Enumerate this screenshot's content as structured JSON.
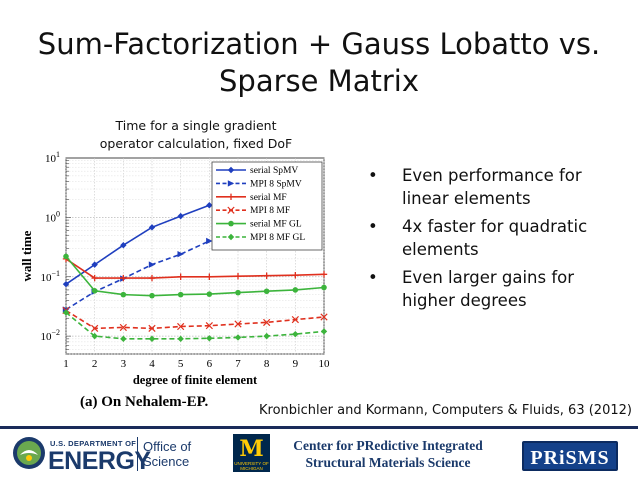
{
  "slide": {
    "title_line1": "Sum-Factorization + Gauss Lobatto vs.",
    "title_line2": "Sparse Matrix",
    "caption_line1": "Time for a single gradient",
    "caption_line2": "operator calculation, fixed DoF",
    "bullets": [
      {
        "line1": "Even performance for",
        "line2": "linear elements"
      },
      {
        "line1": "4x faster for quadratic",
        "line2": "elements"
      },
      {
        "line1": "Even larger gains for",
        "line2": "higher degrees"
      }
    ],
    "bullet_glyph": "•",
    "reference": "Kronbichler and Kormann, Computers & Fluids, 63 (2012)"
  },
  "footer": {
    "doe_top": "U.S. DEPARTMENT OF",
    "doe_main": "ENERGY",
    "office_line1": "Office of",
    "office_line2": "Science",
    "um_letter": "M",
    "um_line1": "UNIVERSITY OF",
    "um_line2": "MICHIGAN",
    "center_line1": "Center for  PRedictive Integrated",
    "center_line2": "Structural Materials Science",
    "prisms": "PRiSMS",
    "colors": {
      "navy": "#1b3a6b",
      "doe_green": "#6aa84f",
      "um_blue": "#00274c",
      "um_maize": "#ffcb05",
      "prisms_blue": "#14418a"
    }
  },
  "chart_data": {
    "type": "line",
    "xlabel": "degree of finite element",
    "ylabel": "wall time",
    "subtitle": "(a)  On Nehalem-EP.",
    "x_scale": "linear",
    "y_scale": "log",
    "xlim": [
      1,
      10
    ],
    "ylim": [
      0.005,
      10
    ],
    "x_ticks": [
      "1",
      "2",
      "3",
      "4",
      "5",
      "6",
      "7",
      "8",
      "9",
      "10"
    ],
    "y_ticks": [
      {
        "value": 0.01,
        "base": "10",
        "exp": "−2"
      },
      {
        "value": 0.1,
        "base": "10",
        "exp": "−1"
      },
      {
        "value": 1,
        "base": "10",
        "exp": "0"
      },
      {
        "value": 10,
        "base": "10",
        "exp": "1"
      }
    ],
    "grid": true,
    "legend_position": "top-right",
    "series": [
      {
        "name": "serial SpMV",
        "color": "#1f3fbf",
        "dash": "solid",
        "marker": "diamond",
        "x": [
          1,
          2,
          3,
          4,
          5,
          6
        ],
        "y": [
          0.075,
          0.16,
          0.34,
          0.68,
          1.05,
          1.6
        ]
      },
      {
        "name": "MPI 8 SpMV",
        "color": "#1f3fbf",
        "dash": "dashed",
        "marker": "triangle",
        "x": [
          1,
          2,
          3,
          4,
          5,
          6
        ],
        "y": [
          0.028,
          0.056,
          0.093,
          0.16,
          0.24,
          0.4
        ]
      },
      {
        "name": "serial MF",
        "color": "#e0301e",
        "dash": "solid",
        "marker": "plus",
        "x": [
          1,
          2,
          3,
          4,
          5,
          6,
          7,
          8,
          9,
          10
        ],
        "y": [
          0.2,
          0.095,
          0.095,
          0.095,
          0.1,
          0.1,
          0.102,
          0.104,
          0.106,
          0.11
        ]
      },
      {
        "name": "MPI 8 MF",
        "color": "#e0301e",
        "dash": "dashed",
        "marker": "x",
        "x": [
          1,
          2,
          3,
          4,
          5,
          6,
          7,
          8,
          9,
          10
        ],
        "y": [
          0.027,
          0.0135,
          0.014,
          0.0135,
          0.0145,
          0.015,
          0.016,
          0.017,
          0.019,
          0.021
        ]
      },
      {
        "name": "serial MF GL",
        "color": "#3cb43c",
        "dash": "solid",
        "marker": "circle",
        "x": [
          1,
          2,
          3,
          4,
          5,
          6,
          7,
          8,
          9,
          10
        ],
        "y": [
          0.22,
          0.058,
          0.05,
          0.048,
          0.05,
          0.051,
          0.054,
          0.057,
          0.06,
          0.066
        ]
      },
      {
        "name": "MPI 8 MF GL",
        "color": "#3cb43c",
        "dash": "dashed",
        "marker": "diamond",
        "x": [
          1,
          2,
          3,
          4,
          5,
          6,
          7,
          8,
          9,
          10
        ],
        "y": [
          0.025,
          0.01,
          0.009,
          0.009,
          0.009,
          0.0092,
          0.0095,
          0.01,
          0.0108,
          0.012
        ]
      }
    ]
  }
}
